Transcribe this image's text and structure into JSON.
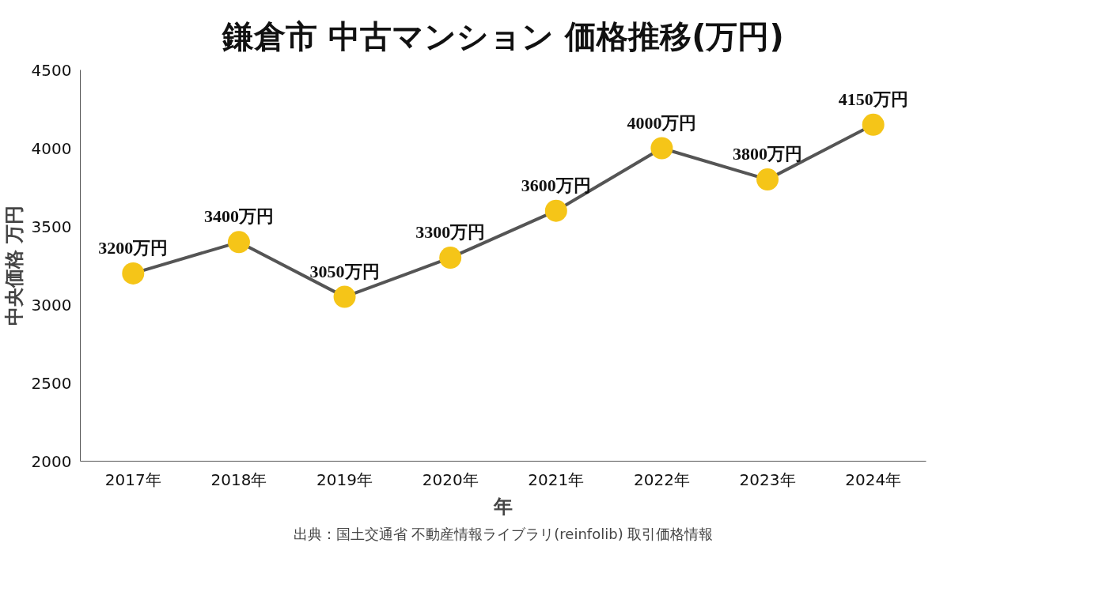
{
  "chart_data": {
    "type": "line",
    "title": "鎌倉市 中古マンション 価格推移(万円)",
    "xlabel": "年",
    "ylabel": "中央価格 万円",
    "categories": [
      "2017年",
      "2018年",
      "2019年",
      "2020年",
      "2021年",
      "2022年",
      "2023年",
      "2024年"
    ],
    "series": [
      {
        "color": "#555555",
        "colors": [
          "#f5c518",
          "#f5c518",
          "#f5c518",
          "#f5c518",
          "#f5c518",
          "#f5c518",
          "#f5c518",
          "#f5c518"
        ],
        "values": [
          3200,
          3400,
          3050,
          3300,
          3600,
          4000,
          3800,
          4150
        ],
        "value_labels": [
          "3200万円",
          "3400万円",
          "3050万円",
          "3300万円",
          "3600万円",
          "4000万円",
          "3800万円",
          "4150万円"
        ]
      }
    ],
    "ylim": [
      2000,
      4500
    ],
    "yticks": [
      2000,
      2500,
      3000,
      3500,
      4000,
      4500
    ],
    "marker": "circle",
    "line_style": "solid",
    "annotations": [
      "出典：国土交通省 不動産情報ライブラリ(reinfolib) 取引価格情報"
    ]
  }
}
